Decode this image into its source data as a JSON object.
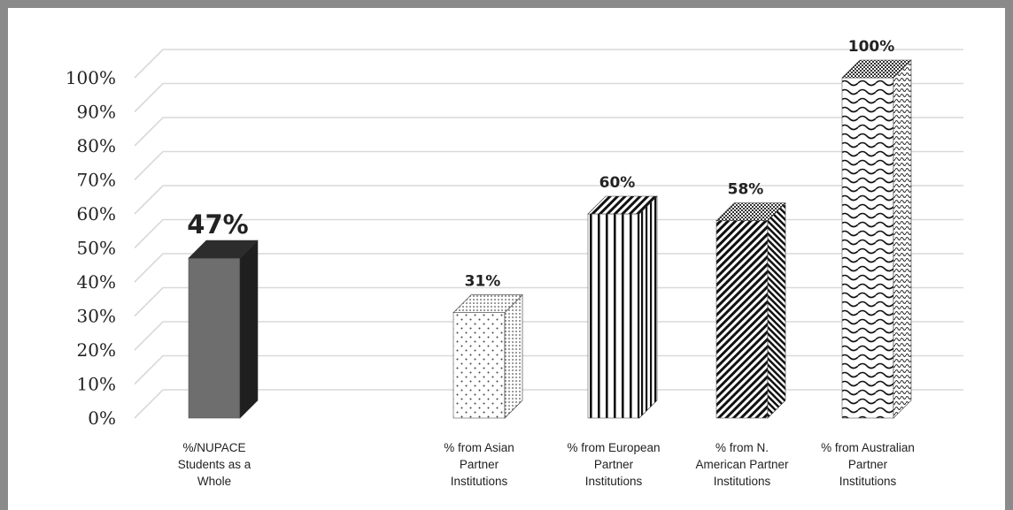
{
  "chart_data": {
    "type": "bar",
    "title": "",
    "xlabel": "",
    "ylabel": "",
    "ylim": [
      0,
      100
    ],
    "y_ticks": [
      "0%",
      "10%",
      "20%",
      "30%",
      "40%",
      "50%",
      "60%",
      "70%",
      "80%",
      "90%",
      "100%"
    ],
    "grid": true,
    "style": "3d",
    "categories": [
      [
        "%/NUPACE",
        "Students as a",
        "Whole"
      ],
      [
        "% from Asian",
        "Partner",
        "Institutions"
      ],
      [
        "% from European",
        "Partner",
        "Institutions"
      ],
      [
        "% from N.",
        "American Partner",
        "Institutions"
      ],
      [
        "% from Australian",
        "Partner",
        "Institutions"
      ]
    ],
    "values": [
      47,
      31,
      60,
      58,
      100
    ],
    "data_labels": [
      "47%",
      "31%",
      "60%",
      "58%",
      "100%"
    ],
    "fills": [
      "solid-gray",
      "dotted",
      "vertical-stripes",
      "diagonal-stripes",
      "wavy"
    ],
    "colors": {
      "solid_front": "#6e6e6e",
      "solid_side": "#1f1f1f",
      "solid_top": "#2c2c2c",
      "grid": "#d9d9d9",
      "frame": "#8a8a8a"
    }
  }
}
